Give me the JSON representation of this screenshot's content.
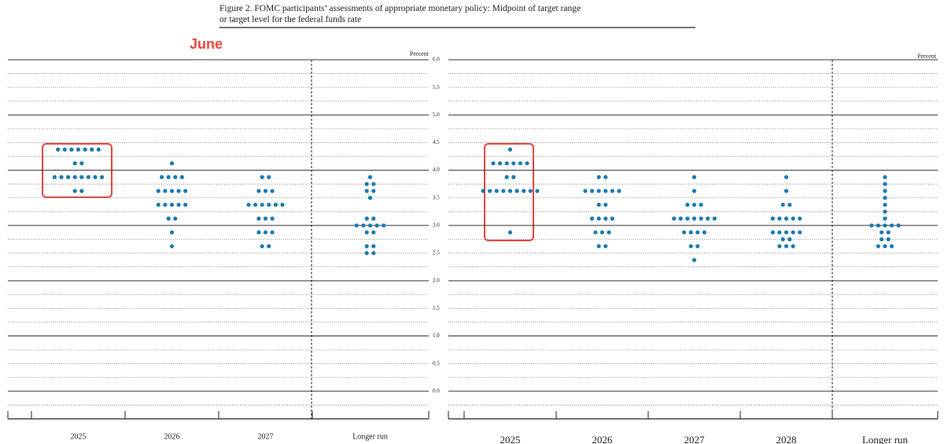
{
  "header": {
    "title_line1": "Figure 2.  FOMC participants’ assessments of appropriate monetary policy: Midpoint of target range",
    "title_line2": "or target level for the federal funds rate"
  },
  "chart_data": [
    {
      "type": "dot",
      "annotation": "June",
      "y_label": "Percent",
      "categories": [
        "2025",
        "2026",
        "2027",
        "Longer run"
      ],
      "color": "#1a7ab0",
      "ylim": [
        -0.5,
        6
      ],
      "show_tick_labels": true,
      "yticks": [
        {
          "value": 0,
          "label": "0.0"
        },
        {
          "value": 0.5,
          "label": "0.5"
        },
        {
          "value": 1,
          "label": "1.0"
        },
        {
          "value": 1.5,
          "label": "1.5"
        },
        {
          "value": 2,
          "label": "2.0"
        },
        {
          "value": 2.5,
          "label": "2.5"
        },
        {
          "value": 3,
          "label": "3.0"
        },
        {
          "value": 3.5,
          "label": "3.5"
        },
        {
          "value": 4,
          "label": "4.0"
        },
        {
          "value": 4.5,
          "label": "4.5"
        },
        {
          "value": 5,
          "label": "5.0"
        },
        {
          "value": 5.5,
          "label": "5.5"
        },
        {
          "value": 6,
          "label": "6.0"
        }
      ],
      "points": [
        [
          {
            "y": 4.375,
            "n": 7
          },
          {
            "y": 4.125,
            "n": 2
          },
          {
            "y": 3.875,
            "n": 8
          },
          {
            "y": 3.625,
            "n": 2
          }
        ],
        [
          {
            "y": 4.125,
            "n": 1
          },
          {
            "y": 3.875,
            "n": 4
          },
          {
            "y": 3.625,
            "n": 5
          },
          {
            "y": 3.375,
            "n": 5
          },
          {
            "y": 3.125,
            "n": 2
          },
          {
            "y": 2.875,
            "n": 1
          },
          {
            "y": 2.625,
            "n": 1
          }
        ],
        [
          {
            "y": 3.875,
            "n": 2
          },
          {
            "y": 3.625,
            "n": 3
          },
          {
            "y": 3.375,
            "n": 6
          },
          {
            "y": 3.125,
            "n": 3
          },
          {
            "y": 2.875,
            "n": 3
          },
          {
            "y": 2.625,
            "n": 2
          }
        ],
        [
          {
            "y": 3.875,
            "n": 1
          },
          {
            "y": 3.75,
            "n": 2
          },
          {
            "y": 3.625,
            "n": 2
          },
          {
            "y": 3.5,
            "n": 1
          },
          {
            "y": 3.125,
            "n": 2
          },
          {
            "y": 3.0,
            "n": 5
          },
          {
            "y": 2.875,
            "n": 2
          },
          {
            "y": 2.625,
            "n": 2
          },
          {
            "y": 2.5,
            "n": 2
          }
        ]
      ]
    },
    {
      "type": "dot",
      "y_label": "Percent",
      "categories": [
        "2025",
        "2026",
        "2027",
        "2028",
        "Longer run"
      ],
      "color": "#1a7ab0",
      "ylim": [
        -0.5,
        6
      ],
      "show_tick_labels": false,
      "yticks": [
        0,
        0.5,
        1,
        1.5,
        2,
        2.5,
        3,
        3.5,
        4,
        4.5,
        5,
        5.5,
        6
      ],
      "points": [
        [
          {
            "y": 4.375,
            "n": 1
          },
          {
            "y": 4.125,
            "n": 6
          },
          {
            "y": 3.875,
            "n": 2
          },
          {
            "y": 3.625,
            "n": 9
          },
          {
            "y": 2.875,
            "n": 1
          }
        ],
        [
          {
            "y": 3.875,
            "n": 2
          },
          {
            "y": 3.625,
            "n": 6
          },
          {
            "y": 3.375,
            "n": 2
          },
          {
            "y": 3.125,
            "n": 4
          },
          {
            "y": 2.875,
            "n": 3
          },
          {
            "y": 2.625,
            "n": 2
          }
        ],
        [
          {
            "y": 3.875,
            "n": 1
          },
          {
            "y": 3.625,
            "n": 1
          },
          {
            "y": 3.375,
            "n": 3
          },
          {
            "y": 3.125,
            "n": 7
          },
          {
            "y": 2.875,
            "n": 4
          },
          {
            "y": 2.625,
            "n": 2
          },
          {
            "y": 2.375,
            "n": 1
          }
        ],
        [
          {
            "y": 3.875,
            "n": 1
          },
          {
            "y": 3.625,
            "n": 1
          },
          {
            "y": 3.375,
            "n": 2
          },
          {
            "y": 3.125,
            "n": 5
          },
          {
            "y": 2.875,
            "n": 5
          },
          {
            "y": 2.75,
            "n": 2
          },
          {
            "y": 2.625,
            "n": 3
          }
        ],
        [
          {
            "y": 3.875,
            "n": 1
          },
          {
            "y": 3.75,
            "n": 1
          },
          {
            "y": 3.625,
            "n": 1
          },
          {
            "y": 3.5,
            "n": 1
          },
          {
            "y": 3.375,
            "n": 1
          },
          {
            "y": 3.25,
            "n": 1
          },
          {
            "y": 3.125,
            "n": 1
          },
          {
            "y": 3.0,
            "n": 5
          },
          {
            "y": 2.875,
            "n": 2
          },
          {
            "y": 2.75,
            "n": 2
          },
          {
            "y": 2.625,
            "n": 3
          }
        ]
      ]
    }
  ]
}
